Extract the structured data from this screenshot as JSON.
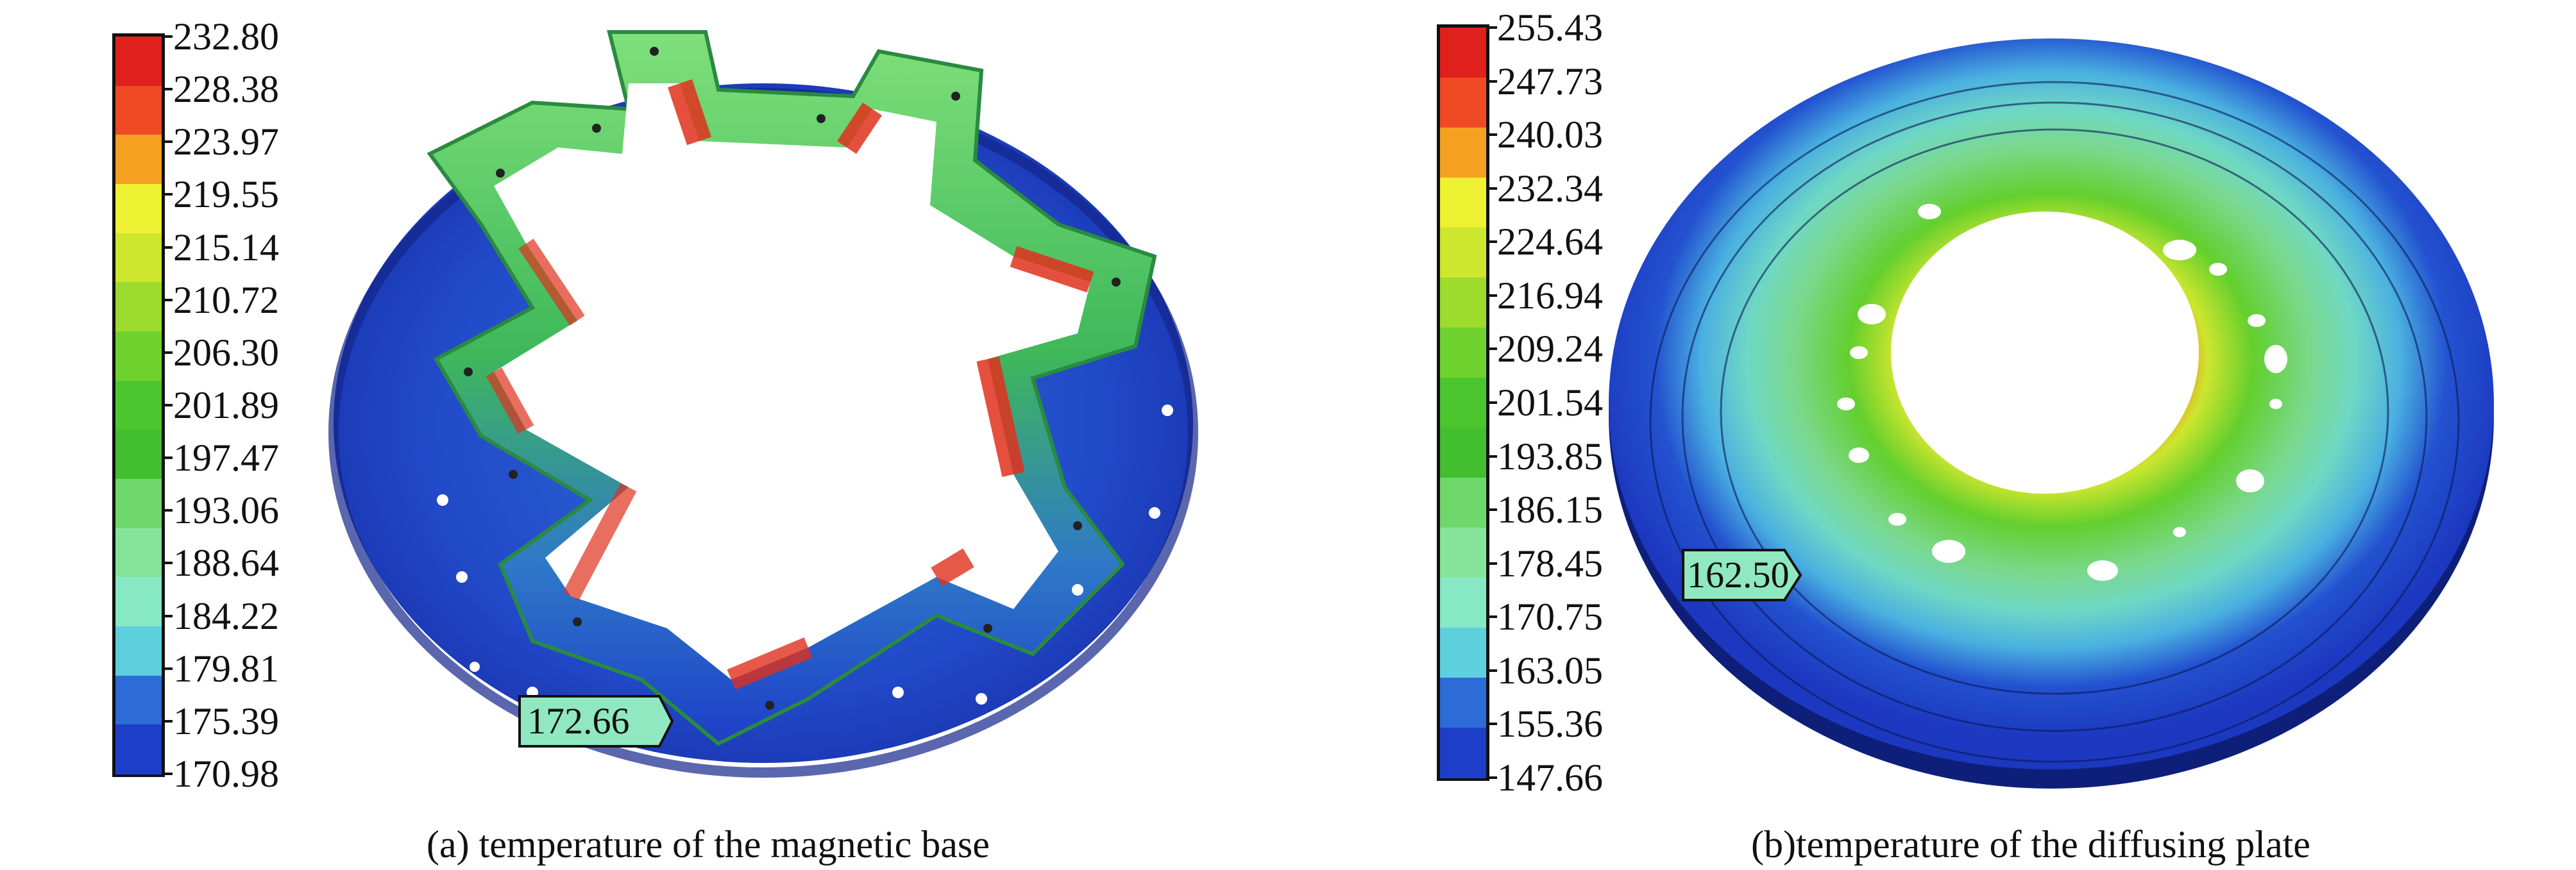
{
  "panel_a": {
    "caption": "(a) temperature of the magnetic base",
    "probe_value": "172.66",
    "legend_values": [
      "232.80",
      "228.38",
      "223.97",
      "219.55",
      "215.14",
      "210.72",
      "206.30",
      "201.89",
      "197.47",
      "193.06",
      "188.64",
      "184.22",
      "179.81",
      "175.39",
      "170.98"
    ]
  },
  "panel_b": {
    "caption": "(b)temperature of the diffusing plate",
    "probe_value": "162.50",
    "legend_values": [
      "255.43",
      "247.73",
      "240.03",
      "232.34",
      "224.64",
      "216.94",
      "209.24",
      "201.54",
      "193.85",
      "186.15",
      "178.45",
      "170.75",
      "163.05",
      "155.36",
      "147.66"
    ]
  },
  "colors": {
    "scale": [
      "#e0201c",
      "#ef4a24",
      "#f5a020",
      "#eef032",
      "#cde62e",
      "#9ddb2c",
      "#6fd22e",
      "#4cc62e",
      "#42be2e",
      "#6ed86c",
      "#86e49a",
      "#86e8c4",
      "#5ecfdc",
      "#2d6bd6",
      "#1d3ec8"
    ],
    "probe_fill": "#8fe8c0"
  }
}
